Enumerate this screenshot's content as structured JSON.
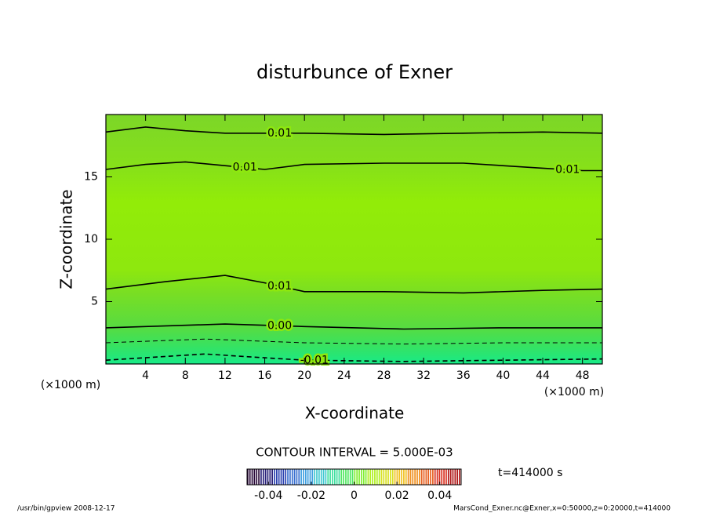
{
  "chart_data": {
    "type": "contour",
    "title": "disturbunce of Exner",
    "x_label": "X-coordinate",
    "y_label": "Z-coordinate",
    "x_unit_label": "(×1000 m)",
    "xlim": [
      0,
      50
    ],
    "ylim": [
      0,
      20
    ],
    "xticks": [
      4,
      8,
      12,
      16,
      20,
      24,
      28,
      32,
      36,
      40,
      44,
      48
    ],
    "yticks": [
      5,
      10,
      15
    ],
    "contours": [
      {
        "level": 0.01,
        "label": "0.01",
        "x": [
          0,
          4,
          8,
          12,
          20,
          28,
          36,
          44,
          50
        ],
        "z": [
          18.6,
          19.0,
          18.7,
          18.5,
          18.5,
          18.4,
          18.5,
          18.6,
          18.5
        ]
      },
      {
        "level": 0.01,
        "label": "0.01",
        "x": [
          0,
          4,
          8,
          12,
          16,
          20,
          28,
          36,
          44,
          48,
          50
        ],
        "z": [
          15.6,
          16.0,
          16.2,
          15.9,
          15.6,
          16.0,
          16.1,
          16.1,
          15.7,
          15.5,
          15.5
        ]
      },
      {
        "level": 0.01,
        "label": "0.01",
        "x": [
          0,
          6,
          12,
          16,
          20,
          28,
          36,
          44,
          50
        ],
        "z": [
          6.0,
          6.6,
          7.1,
          6.5,
          5.8,
          5.8,
          5.7,
          5.9,
          6.0
        ]
      },
      {
        "level": 0,
        "label": "0.00",
        "x": [
          0,
          12,
          20,
          30,
          40,
          50
        ],
        "z": [
          2.9,
          3.2,
          3.0,
          2.8,
          2.9,
          2.9
        ]
      },
      {
        "level": -0.005,
        "x": [
          0,
          10,
          20,
          30,
          40,
          50
        ],
        "z": [
          1.7,
          2.0,
          1.7,
          1.6,
          1.7,
          1.7
        ]
      },
      {
        "level": -0.01,
        "label": "-0.01",
        "x": [
          0,
          10,
          16,
          20,
          30,
          40,
          50
        ],
        "z": [
          0.3,
          0.8,
          0.5,
          0.3,
          0.2,
          0.3,
          0.4
        ]
      }
    ],
    "contour_interval_text": "CONTOUR INTERVAL = 5.000E-03",
    "colorbar": {
      "lim": [
        -0.05,
        0.05
      ],
      "ticks": [
        -0.04,
        -0.02,
        0,
        0.02,
        0.04
      ],
      "colors": [
        "#2a0a3a",
        "#28207a",
        "#2a40b0",
        "#3a70d0",
        "#40a0e0",
        "#40c8d0",
        "#40e0a0",
        "#50e860",
        "#80ee30",
        "#b0f020",
        "#d8e020",
        "#f0c020",
        "#f09020",
        "#e86020",
        "#d83020",
        "#b01818"
      ]
    },
    "time_text": "t=414000 s",
    "footer_left": "/usr/bin/gpview   2008-12-17",
    "footer_right": "MarsCond_Exner.nc@Exner,x=0:50000,z=0:20000,t=414000"
  }
}
